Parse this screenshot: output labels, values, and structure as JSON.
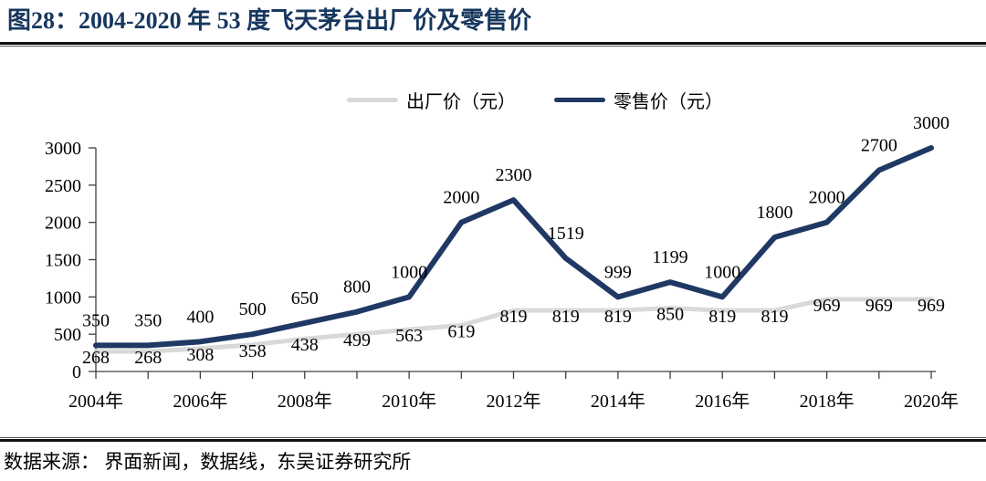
{
  "header": {
    "title": "图28：2004-2020 年 53 度飞天茅台出厂价及零售价"
  },
  "legend": [
    {
      "id": "factory-price",
      "label": "出厂价（元）",
      "color": "#D9D9D9"
    },
    {
      "id": "retail-price",
      "label": "零售价（元）",
      "color": "#1F3864"
    }
  ],
  "footer": {
    "source": "数据来源： 界面新闻，数据线，东吴证券研究所"
  },
  "colors": {
    "title_navy": "#17375E",
    "retail_line": "#1F3864",
    "factory_line": "#D9D9D9",
    "axis": "#404040",
    "label_text": "#000000"
  },
  "chart_data": {
    "type": "line",
    "title": "2004-2020 年 53 度飞天茅台出厂价及零售价",
    "x": [
      2004,
      2005,
      2006,
      2007,
      2008,
      2009,
      2010,
      2011,
      2012,
      2013,
      2014,
      2015,
      2016,
      2017,
      2018,
      2019,
      2020
    ],
    "x_tick_labels": [
      "2004年",
      "2006年",
      "2008年",
      "2010年",
      "2012年",
      "2014年",
      "2016年",
      "2018年",
      "2020年"
    ],
    "y_ticks": [
      0,
      500,
      1000,
      1500,
      2000,
      2500,
      3000
    ],
    "ylim": [
      0,
      3000
    ],
    "grid": false,
    "legend_position": "top-center",
    "data_labels": true,
    "series": [
      {
        "name": "出厂价（元）",
        "color": "#D9D9D9",
        "label_position": "below",
        "values": [
          268,
          268,
          308,
          358,
          438,
          499,
          563,
          619,
          819,
          819,
          819,
          850,
          819,
          819,
          969,
          969,
          969
        ]
      },
      {
        "name": "零售价（元）",
        "color": "#1F3864",
        "label_position": "above",
        "values": [
          350,
          350,
          400,
          500,
          650,
          800,
          1000,
          2000,
          2300,
          1519,
          999,
          1199,
          1000,
          1800,
          2000,
          2700,
          3000
        ]
      }
    ]
  }
}
